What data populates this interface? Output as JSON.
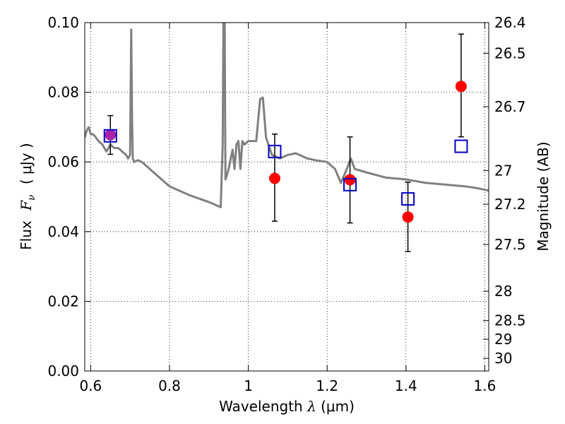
{
  "chart_data": {
    "type": "scatter",
    "xlabel": "Wavelength  λ (μm)",
    "ylabel": "Flux  F_ν  ( μJy )",
    "ylabel_parts": {
      "prefix": "Flux",
      "symbol": "F",
      "subscript": "ν",
      "unit": "( μJy )"
    },
    "xlabel_parts": {
      "text": "Wavelength",
      "symbol": "λ",
      "unit": "(μm)"
    },
    "y2label": "Magnitude (AB)",
    "xlim": [
      0.585,
      1.61
    ],
    "ylim": [
      0.0,
      0.1
    ],
    "grid": true,
    "x_ticks": [
      0.6,
      0.8,
      1.0,
      1.2,
      1.4,
      1.6
    ],
    "x_tick_labels": [
      "0.6",
      "0.8",
      "1",
      "1.2",
      "1.4",
      "1.6"
    ],
    "y_ticks": [
      0.0,
      0.02,
      0.04,
      0.06,
      0.08,
      0.1
    ],
    "y_tick_labels": [
      "0.00",
      "0.02",
      "0.04",
      "0.06",
      "0.08",
      "0.10"
    ],
    "y2_ticks": [
      {
        "mag": 26.4,
        "label": "26.4"
      },
      {
        "mag": 26.5,
        "label": "26.5"
      },
      {
        "mag": 26.7,
        "label": "26.7"
      },
      {
        "mag": 27.0,
        "label": "27"
      },
      {
        "mag": 27.2,
        "label": "27.2"
      },
      {
        "mag": 27.5,
        "label": "27.5"
      },
      {
        "mag": 28.0,
        "label": "28"
      },
      {
        "mag": 28.5,
        "label": "28.5"
      },
      {
        "mag": 29.0,
        "label": "29"
      },
      {
        "mag": 30.0,
        "label": "30"
      }
    ],
    "colors": {
      "spectrum": "#808080",
      "observed": "#ff0000",
      "model": "#0000cc",
      "error_bar": "#000000",
      "overlap": "#aa22aa"
    },
    "series": [
      {
        "kind": "line",
        "x": [
          0.585,
          0.59,
          0.595,
          0.6,
          0.605,
          0.61,
          0.62,
          0.63,
          0.64,
          0.645,
          0.65,
          0.66,
          0.67,
          0.68,
          0.69,
          0.695,
          0.7,
          0.703,
          0.705,
          0.707,
          0.71,
          0.72,
          0.73,
          0.75,
          0.78,
          0.8,
          0.85,
          0.9,
          0.93,
          0.935,
          0.937,
          0.94,
          0.942,
          0.945,
          0.95,
          0.96,
          0.965,
          0.97,
          0.975,
          0.98,
          0.985,
          0.99,
          1.0,
          1.02,
          1.03,
          1.037,
          1.045,
          1.06,
          1.08,
          1.1,
          1.12,
          1.15,
          1.17,
          1.2,
          1.22,
          1.235,
          1.25,
          1.26,
          1.27,
          1.3,
          1.35,
          1.4,
          1.45,
          1.5,
          1.55,
          1.58,
          1.61
        ],
        "y": [
          0.067,
          0.069,
          0.07,
          0.068,
          0.068,
          0.0675,
          0.066,
          0.065,
          0.063,
          0.064,
          0.065,
          0.064,
          0.064,
          0.063,
          0.062,
          0.061,
          0.062,
          0.098,
          0.072,
          0.061,
          0.06,
          0.0605,
          0.06,
          0.058,
          0.055,
          0.053,
          0.0505,
          0.0485,
          0.047,
          0.065,
          0.1,
          0.1,
          0.055,
          0.056,
          0.058,
          0.0635,
          0.058,
          0.065,
          0.066,
          0.058,
          0.066,
          0.065,
          0.066,
          0.066,
          0.078,
          0.0785,
          0.067,
          0.062,
          0.061,
          0.062,
          0.0625,
          0.061,
          0.0605,
          0.06,
          0.058,
          0.054,
          0.058,
          0.061,
          0.058,
          0.057,
          0.0555,
          0.055,
          0.054,
          0.0535,
          0.053,
          0.0525,
          0.0518
        ]
      },
      {
        "kind": "points_with_errors",
        "x": [
          0.65,
          1.067,
          1.258,
          1.405,
          1.54
        ],
        "y": [
          0.0678,
          0.0553,
          0.0549,
          0.0442,
          0.0817
        ],
        "yerr_low": [
          0.0622,
          0.043,
          0.0425,
          0.0343,
          0.0672
        ],
        "yerr_high": [
          0.0733,
          0.068,
          0.0672,
          0.0542,
          0.0967
        ]
      },
      {
        "kind": "squares",
        "x": [
          0.65,
          1.067,
          1.258,
          1.405,
          1.54
        ],
        "y": [
          0.0675,
          0.063,
          0.0535,
          0.0494,
          0.0645
        ]
      }
    ]
  }
}
